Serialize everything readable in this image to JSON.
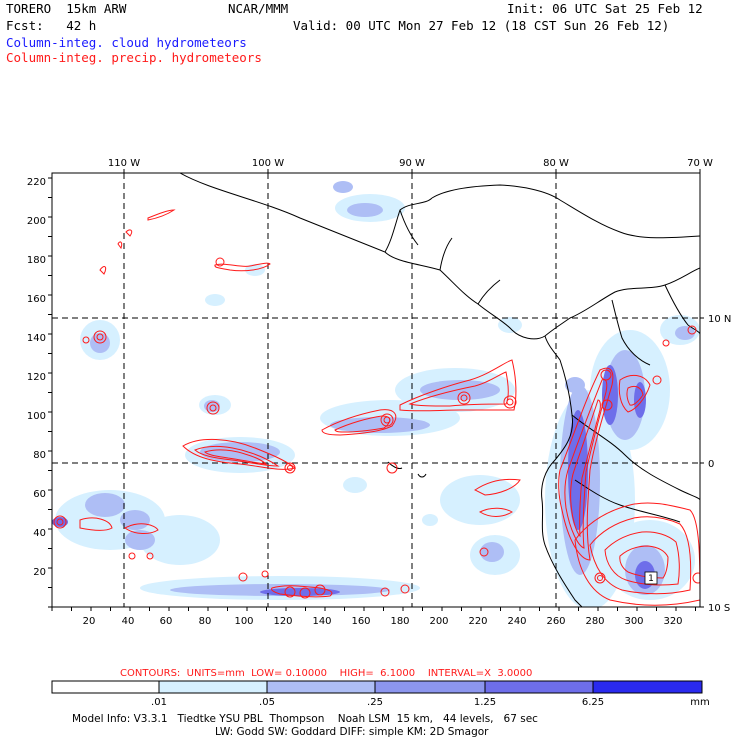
{
  "header": {
    "model_title": "TORERO  15km ARW",
    "org": "NCAR/MMM",
    "init_time": "Init: 06 UTC Sat 25 Feb 12",
    "forecast": "Fcst:   42 h",
    "valid_time": "Valid: 00 UTC Mon 27 Feb 12 (18 CST Sun 26 Feb 12)",
    "field_cloud": "Column-integ. cloud hydrometeors",
    "field_precip": "Column-integ. precip. hydrometeors"
  },
  "map": {
    "top_lon_labels": [
      "110 W",
      "100 W",
      "90 W",
      "80 W",
      "70 W"
    ],
    "right_lat_labels": [
      "10 N",
      "0",
      "10 S"
    ],
    "y_ticks": [
      "220",
      "200",
      "180",
      "160",
      "140",
      "120",
      "100",
      "80",
      "60",
      "40",
      "20"
    ],
    "x_ticks": [
      "20",
      "40",
      "60",
      "80",
      "100",
      "120",
      "140",
      "160",
      "180",
      "200",
      "220",
      "240",
      "260",
      "280",
      "300",
      "320"
    ]
  },
  "contour_info": {
    "label": "CONTOURS:  UNITS=mm  LOW= 0.10000    HIGH=  6.1000    INTERVAL=X  3.0000"
  },
  "colorbar": {
    "thresholds": [
      ".01",
      ".05",
      ".25",
      "1.25",
      "6.25"
    ],
    "units": "mm",
    "colors": [
      "#ffffff",
      "#d6f0ff",
      "#aebef5",
      "#8c96ee",
      "#6e6eea",
      "#2a2aee"
    ]
  },
  "footer": {
    "line1": "Model Info: V3.3.1   Tiedtke YSU PBL  Thompson    Noah LSM  15 km,   44 levels,   67 sec",
    "line2": "LW: Godd SW: Goddard DIFF: simple KM: 2D Smagor"
  }
}
